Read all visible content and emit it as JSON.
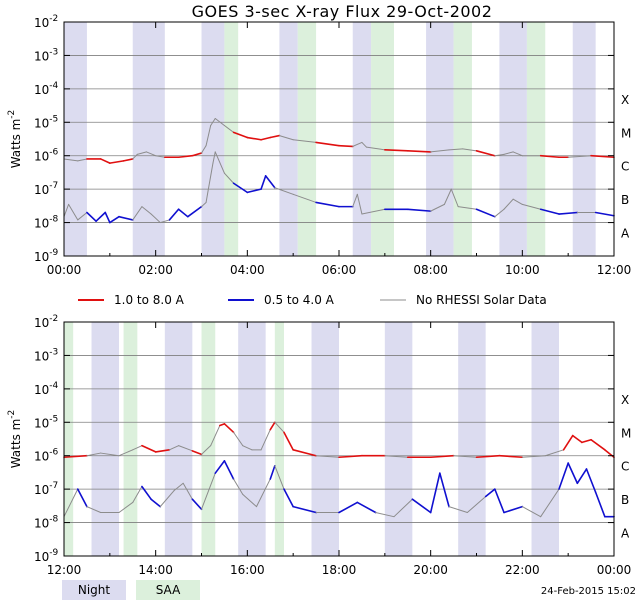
{
  "chart_data": {
    "type": "line",
    "title": "GOES 3-sec X-ray Flux   29-Oct-2002",
    "ylabel": "Watts m",
    "ylabel_sup": "-2",
    "yscale": "log",
    "ylim": [
      1e-09,
      0.01
    ],
    "ytick_labels": [
      "10",
      "10",
      "10",
      "10",
      "10",
      "10",
      "10",
      "10"
    ],
    "ytick_exps": [
      "-9",
      "-8",
      "-7",
      "-6",
      "-5",
      "-4",
      "-3",
      "-2"
    ],
    "flare_classes": [
      "A",
      "B",
      "C",
      "M",
      "X"
    ],
    "grid": "horizontal",
    "legend": {
      "placement": "between-panels",
      "entries": [
        {
          "name": "1.0 to 8.0 A",
          "color": "#e01010"
        },
        {
          "name": "0.5 to 4.0 A",
          "color": "#1010d0"
        },
        {
          "name": "No RHESSI Solar Data",
          "color": "#8c8c8c"
        }
      ]
    },
    "key": [
      {
        "name": "Night",
        "color": "#dcdcf0"
      },
      {
        "name": "SAA",
        "color": "#dcf0dc"
      }
    ],
    "timestamp": "24-Feb-2015 15:02",
    "panels": [
      {
        "xlim": [
          0,
          12
        ],
        "xtick_labels": [
          "00:00",
          "02:00",
          "04:00",
          "06:00",
          "08:00",
          "10:00",
          "12:00"
        ],
        "night": [
          [
            0.0,
            0.5
          ],
          [
            1.5,
            2.2
          ],
          [
            3.0,
            3.5
          ],
          [
            4.7,
            5.1
          ],
          [
            6.3,
            6.7
          ],
          [
            7.9,
            8.5
          ],
          [
            9.5,
            10.1
          ],
          [
            11.1,
            11.6
          ]
        ],
        "saa": [
          [
            3.5,
            3.8
          ],
          [
            5.1,
            5.5
          ],
          [
            6.7,
            7.2
          ],
          [
            8.5,
            8.9
          ],
          [
            10.1,
            10.5
          ]
        ],
        "long_flux": [
          [
            0.0,
            8e-07
          ],
          [
            0.3,
            7e-07
          ],
          [
            0.5,
            8e-07
          ],
          [
            0.8,
            8e-07
          ],
          [
            1.0,
            6e-07
          ],
          [
            1.3,
            7e-07
          ],
          [
            1.5,
            8e-07
          ],
          [
            1.6,
            1.1e-06
          ],
          [
            1.8,
            1.3e-06
          ],
          [
            2.0,
            1e-06
          ],
          [
            2.2,
            9e-07
          ],
          [
            2.5,
            9e-07
          ],
          [
            2.8,
            1e-06
          ],
          [
            3.0,
            1.2e-06
          ],
          [
            3.1,
            2e-06
          ],
          [
            3.2,
            8e-06
          ],
          [
            3.3,
            1.3e-05
          ],
          [
            3.5,
            8e-06
          ],
          [
            3.7,
            5e-06
          ],
          [
            4.0,
            3.5e-06
          ],
          [
            4.3,
            3e-06
          ],
          [
            4.5,
            3.5e-06
          ],
          [
            4.7,
            4e-06
          ],
          [
            5.0,
            3e-06
          ],
          [
            5.5,
            2.5e-06
          ],
          [
            6.0,
            2e-06
          ],
          [
            6.3,
            1.9e-06
          ],
          [
            6.5,
            2.5e-06
          ],
          [
            6.6,
            1.8e-06
          ],
          [
            7.0,
            1.5e-06
          ],
          [
            7.5,
            1.4e-06
          ],
          [
            8.0,
            1.3e-06
          ],
          [
            8.4,
            1.5e-06
          ],
          [
            8.7,
            1.6e-06
          ],
          [
            9.0,
            1.4e-06
          ],
          [
            9.4,
            1e-06
          ],
          [
            9.6,
            1.1e-06
          ],
          [
            9.8,
            1.3e-06
          ],
          [
            10.0,
            1e-06
          ],
          [
            10.4,
            1e-06
          ],
          [
            10.8,
            9e-07
          ],
          [
            11.0,
            9e-07
          ],
          [
            11.5,
            1e-06
          ],
          [
            12.0,
            9e-07
          ]
        ],
        "short_flux": [
          [
            0.0,
            1.5e-08
          ],
          [
            0.1,
            3.5e-08
          ],
          [
            0.3,
            1.2e-08
          ],
          [
            0.5,
            2e-08
          ],
          [
            0.7,
            1.1e-08
          ],
          [
            0.9,
            2e-08
          ],
          [
            1.0,
            1e-08
          ],
          [
            1.2,
            1.5e-08
          ],
          [
            1.5,
            1.2e-08
          ],
          [
            1.7,
            3e-08
          ],
          [
            1.9,
            1.8e-08
          ],
          [
            2.1,
            1e-08
          ],
          [
            2.3,
            1.2e-08
          ],
          [
            2.5,
            2.5e-08
          ],
          [
            2.7,
            1.5e-08
          ],
          [
            3.0,
            3e-08
          ],
          [
            3.1,
            4e-08
          ],
          [
            3.15,
            1e-07
          ],
          [
            3.25,
            6e-07
          ],
          [
            3.3,
            1.3e-06
          ],
          [
            3.5,
            3e-07
          ],
          [
            3.7,
            1.5e-07
          ],
          [
            4.0,
            8e-08
          ],
          [
            4.3,
            1e-07
          ],
          [
            4.4,
            2.5e-07
          ],
          [
            4.6,
            1.1e-07
          ],
          [
            5.0,
            7e-08
          ],
          [
            5.5,
            4e-08
          ],
          [
            6.0,
            3e-08
          ],
          [
            6.3,
            3e-08
          ],
          [
            6.4,
            7e-08
          ],
          [
            6.5,
            1.8e-08
          ],
          [
            7.0,
            2.5e-08
          ],
          [
            7.5,
            2.5e-08
          ],
          [
            8.0,
            2.2e-08
          ],
          [
            8.3,
            3.5e-08
          ],
          [
            8.45,
            1e-07
          ],
          [
            8.6,
            3e-08
          ],
          [
            9.0,
            2.5e-08
          ],
          [
            9.4,
            1.5e-08
          ],
          [
            9.6,
            2.5e-08
          ],
          [
            9.8,
            5e-08
          ],
          [
            10.0,
            3.5e-08
          ],
          [
            10.4,
            2.5e-08
          ],
          [
            10.8,
            1.8e-08
          ],
          [
            11.2,
            2e-08
          ],
          [
            11.6,
            2e-08
          ],
          [
            12.0,
            1.6e-08
          ]
        ]
      },
      {
        "xlim": [
          12,
          24
        ],
        "xtick_labels": [
          "12:00",
          "14:00",
          "16:00",
          "18:00",
          "20:00",
          "22:00",
          "00:00"
        ],
        "night": [
          [
            12.6,
            13.2
          ],
          [
            14.2,
            14.8
          ],
          [
            15.8,
            16.4
          ],
          [
            17.4,
            18.0
          ],
          [
            19.0,
            19.6
          ],
          [
            20.6,
            21.2
          ],
          [
            22.2,
            22.8
          ]
        ],
        "saa": [
          [
            12.0,
            12.2
          ],
          [
            13.3,
            13.6
          ],
          [
            15.0,
            15.3
          ],
          [
            16.6,
            16.8
          ]
        ],
        "long_flux": [
          [
            12.0,
            9e-07
          ],
          [
            12.5,
            1e-06
          ],
          [
            12.8,
            1.2e-06
          ],
          [
            13.2,
            1e-06
          ],
          [
            13.5,
            1.5e-06
          ],
          [
            13.7,
            2e-06
          ],
          [
            14.0,
            1.3e-06
          ],
          [
            14.3,
            1.5e-06
          ],
          [
            14.5,
            2e-06
          ],
          [
            14.8,
            1.4e-06
          ],
          [
            15.0,
            1.1e-06
          ],
          [
            15.2,
            2e-06
          ],
          [
            15.4,
            8e-06
          ],
          [
            15.5,
            9e-06
          ],
          [
            15.7,
            5e-06
          ],
          [
            15.9,
            2e-06
          ],
          [
            16.1,
            1.5e-06
          ],
          [
            16.3,
            1.5e-06
          ],
          [
            16.5,
            6e-06
          ],
          [
            16.6,
            1e-05
          ],
          [
            16.8,
            5e-06
          ],
          [
            17.0,
            1.5e-06
          ],
          [
            17.5,
            1e-06
          ],
          [
            18.0,
            9e-07
          ],
          [
            18.5,
            1e-06
          ],
          [
            19.0,
            1e-06
          ],
          [
            19.5,
            9e-07
          ],
          [
            20.0,
            9e-07
          ],
          [
            20.5,
            1e-06
          ],
          [
            21.0,
            9e-07
          ],
          [
            21.5,
            1e-06
          ],
          [
            22.0,
            9e-07
          ],
          [
            22.5,
            1e-06
          ],
          [
            22.9,
            1.5e-06
          ],
          [
            23.1,
            4e-06
          ],
          [
            23.3,
            2.5e-06
          ],
          [
            23.5,
            3e-06
          ],
          [
            23.8,
            1.5e-06
          ],
          [
            24.0,
            9e-07
          ]
        ],
        "short_flux": [
          [
            12.0,
            1.5e-08
          ],
          [
            12.3,
            1e-07
          ],
          [
            12.5,
            3e-08
          ],
          [
            12.8,
            2e-08
          ],
          [
            13.2,
            2e-08
          ],
          [
            13.5,
            4e-08
          ],
          [
            13.7,
            1.2e-07
          ],
          [
            13.9,
            5e-08
          ],
          [
            14.1,
            3e-08
          ],
          [
            14.4,
            9e-08
          ],
          [
            14.6,
            1.5e-07
          ],
          [
            14.8,
            5e-08
          ],
          [
            15.0,
            2.5e-08
          ],
          [
            15.3,
            3e-07
          ],
          [
            15.5,
            7e-07
          ],
          [
            15.7,
            2e-07
          ],
          [
            15.9,
            7e-08
          ],
          [
            16.2,
            3e-08
          ],
          [
            16.5,
            2e-07
          ],
          [
            16.6,
            5e-07
          ],
          [
            16.8,
            1e-07
          ],
          [
            17.0,
            3e-08
          ],
          [
            17.5,
            2e-08
          ],
          [
            18.0,
            2e-08
          ],
          [
            18.4,
            4e-08
          ],
          [
            18.8,
            2e-08
          ],
          [
            19.2,
            1.5e-08
          ],
          [
            19.6,
            5e-08
          ],
          [
            20.0,
            2e-08
          ],
          [
            20.2,
            3e-07
          ],
          [
            20.4,
            3e-08
          ],
          [
            20.8,
            2e-08
          ],
          [
            21.2,
            6e-08
          ],
          [
            21.4,
            1e-07
          ],
          [
            21.6,
            2e-08
          ],
          [
            22.0,
            3e-08
          ],
          [
            22.4,
            1.5e-08
          ],
          [
            22.8,
            1e-07
          ],
          [
            23.0,
            6e-07
          ],
          [
            23.2,
            1.5e-07
          ],
          [
            23.4,
            4e-07
          ],
          [
            23.6,
            8e-08
          ],
          [
            23.8,
            1.5e-08
          ],
          [
            24.0,
            1.5e-08
          ]
        ]
      }
    ]
  }
}
